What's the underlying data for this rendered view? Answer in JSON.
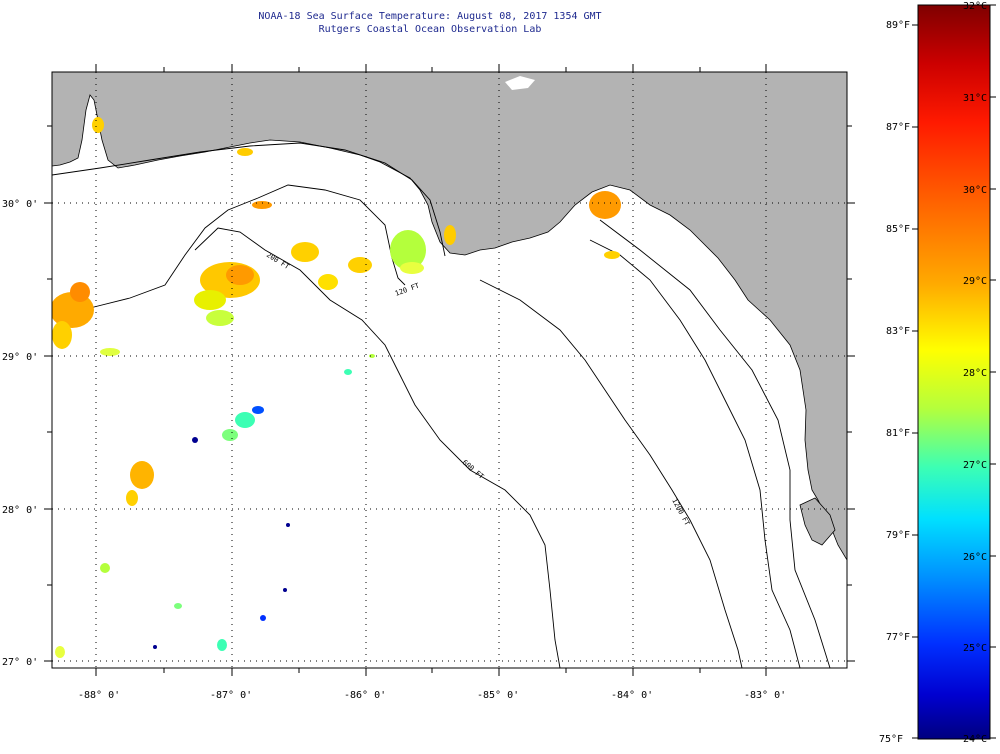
{
  "header": {
    "title": "NOAA-18 Sea Surface Temperature:  August 08, 2017 1354 GMT",
    "subtitle": "Rutgers Coastal Ocean Observation Lab"
  },
  "map": {
    "lon_range": [
      -88.35,
      -82.4
    ],
    "lat_range": [
      26.95,
      30.85
    ],
    "lat_ticks": [
      {
        "value": 30,
        "label": "30° 0'"
      },
      {
        "value": 29,
        "label": "29° 0'"
      },
      {
        "value": 28,
        "label": "28° 0'"
      },
      {
        "value": 27,
        "label": "27° 0'"
      }
    ],
    "lon_ticks": [
      {
        "value": -88,
        "label": "-88° 0'"
      },
      {
        "value": -87,
        "label": "-87° 0'"
      },
      {
        "value": -86,
        "label": "-86° 0'"
      },
      {
        "value": -85,
        "label": "-85° 0'"
      },
      {
        "value": -84,
        "label": "-84° 0'"
      },
      {
        "value": -83,
        "label": "-83° 0'"
      }
    ],
    "contour_labels": [
      "200 FT",
      "120 FT",
      "600 FT",
      "1200 FT"
    ],
    "colors": {
      "land": "#b3b3b3",
      "ocean": "#ffffff",
      "grid": "#000000"
    }
  },
  "colorbar": {
    "celsius": [
      "32°C",
      "31°C",
      "30°C",
      "29°C",
      "28°C",
      "27°C",
      "26°C",
      "25°C",
      "24°C"
    ],
    "fahrenheit": [
      "89°F",
      "87°F",
      "85°F",
      "83°F",
      "81°F",
      "79°F",
      "77°F",
      "75°F"
    ],
    "range_c": [
      24,
      32
    ]
  }
}
